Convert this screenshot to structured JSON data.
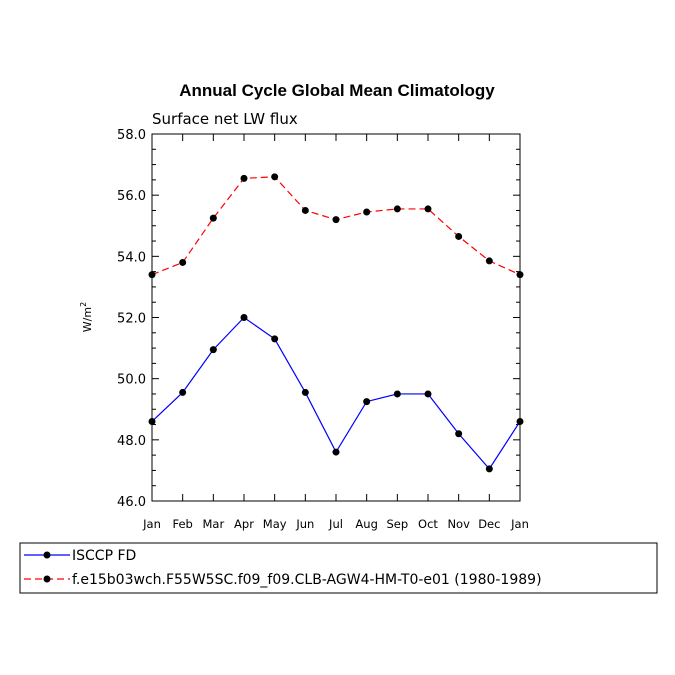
{
  "chart_data": {
    "type": "line",
    "title": "Annual Cycle Global Mean Climatology",
    "subtitle": "Surface net LW flux",
    "ylabel": "W/m",
    "ylabel_superscript": "2",
    "categories": [
      "Jan",
      "Feb",
      "Mar",
      "Apr",
      "May",
      "Jun",
      "Jul",
      "Aug",
      "Sep",
      "Oct",
      "Nov",
      "Dec",
      "Jan"
    ],
    "yticks": [
      "46.0",
      "48.0",
      "50.0",
      "52.0",
      "54.0",
      "56.0",
      "58.0"
    ],
    "ylim": [
      46.0,
      58.0
    ],
    "grid": false,
    "legend_position": "bottom",
    "series": [
      {
        "name": "ISCCP FD",
        "color": "#0000ff",
        "line_style": "solid",
        "marker": "filled-circle",
        "values": [
          48.6,
          49.55,
          50.95,
          52.0,
          51.3,
          49.55,
          47.6,
          49.25,
          49.5,
          49.5,
          48.2,
          47.05,
          48.6
        ]
      },
      {
        "name": "f.e15b03wch.F55W5SC.f09_f09.CLB-AGW4-HM-T0-e01 (1980-1989)",
        "color": "#ff0000",
        "line_style": "dashed",
        "marker": "filled-circle",
        "values": [
          53.4,
          53.8,
          55.25,
          56.55,
          56.6,
          55.5,
          55.2,
          55.45,
          55.55,
          55.55,
          54.65,
          53.85,
          53.4
        ]
      }
    ]
  }
}
